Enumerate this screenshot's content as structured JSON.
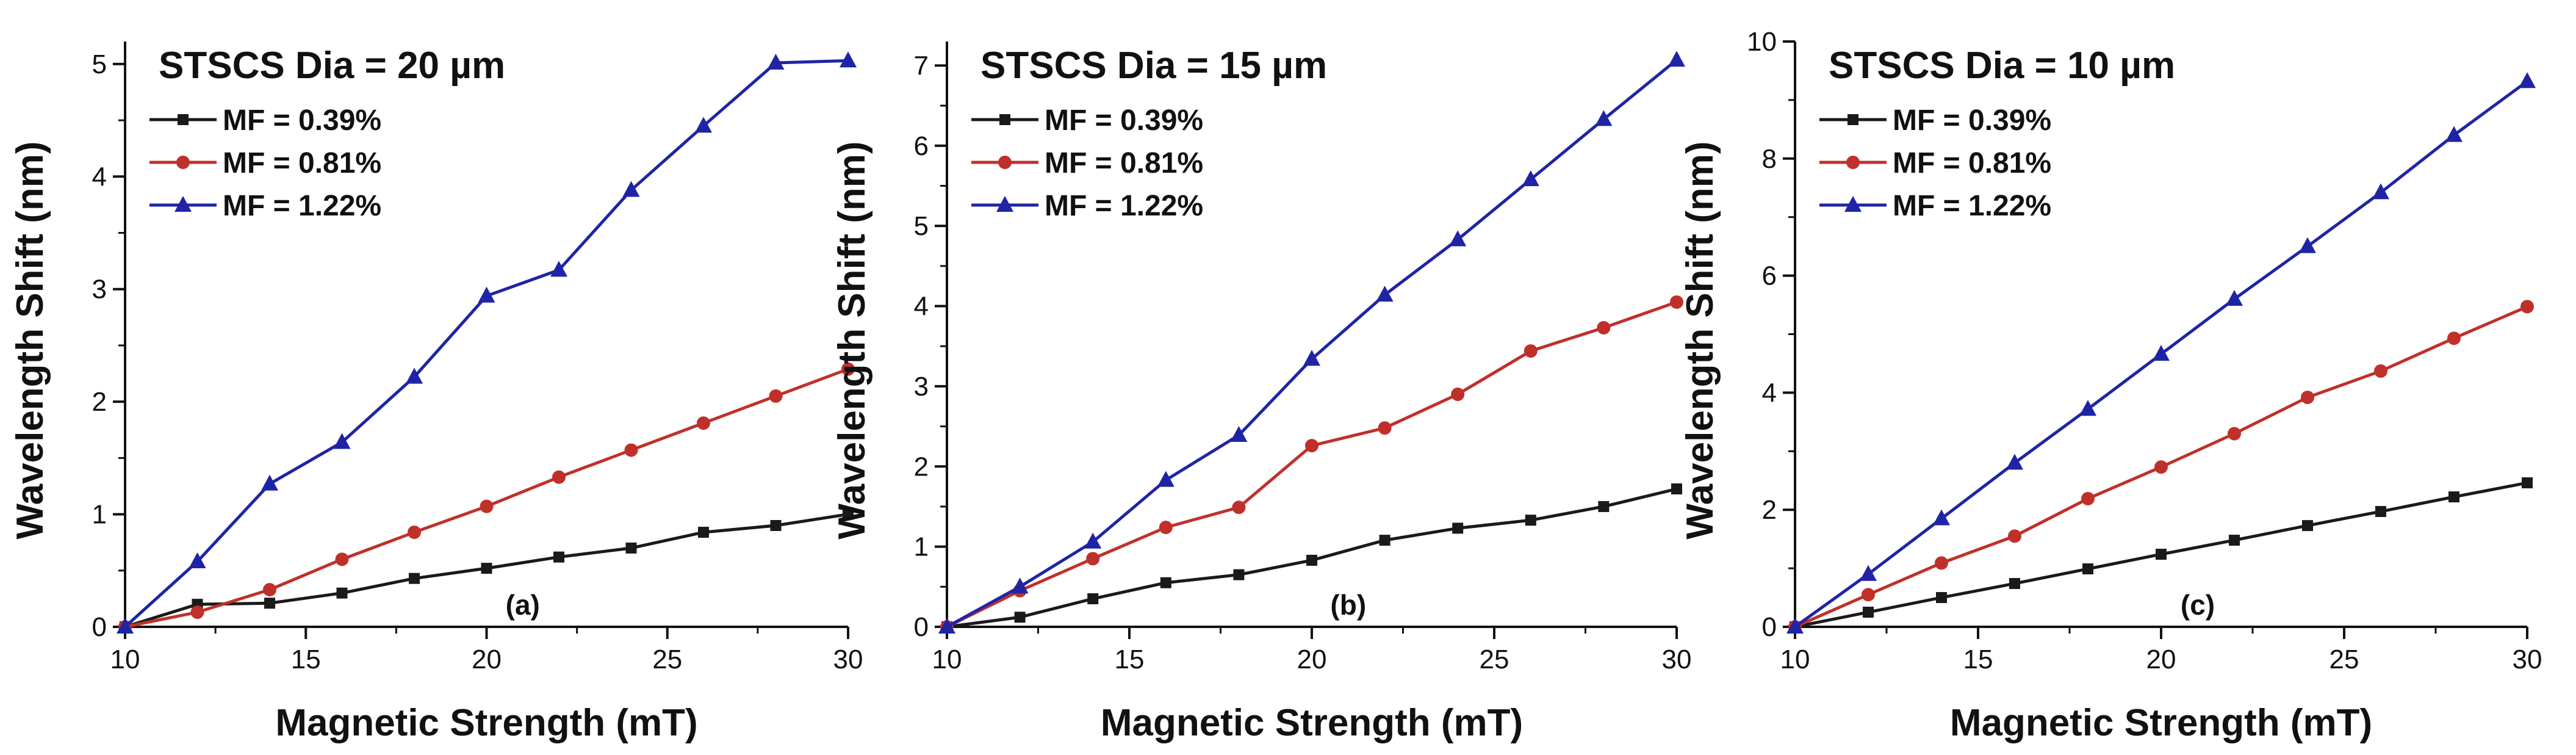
{
  "chart_data": [
    {
      "type": "line",
      "panel_label": "(a)",
      "title": "STSCS Dia = 20 µm",
      "xlabel": "Magnetic Strength (mT)",
      "ylabel": "Wavelength Shift (nm)",
      "xlim": [
        10,
        30
      ],
      "ylim": [
        0,
        5.2
      ],
      "xticks": [
        10,
        15,
        20,
        25,
        30
      ],
      "yticks": [
        0,
        1,
        2,
        3,
        4,
        5
      ],
      "x": [
        10,
        12,
        14,
        16,
        18,
        20,
        22,
        24,
        26,
        28,
        30
      ],
      "grid": false,
      "legend_position": "top-left",
      "series": [
        {
          "name": "MF = 0.39%",
          "color": "#1a1a1a",
          "marker": "square",
          "values": [
            0,
            0.2,
            0.21,
            0.3,
            0.43,
            0.52,
            0.62,
            0.7,
            0.84,
            0.9,
            1.0
          ]
        },
        {
          "name": "MF = 0.81%",
          "color": "#c0302a",
          "marker": "circle",
          "values": [
            0,
            0.13,
            0.33,
            0.6,
            0.84,
            1.07,
            1.33,
            1.57,
            1.81,
            2.05,
            2.29
          ]
        },
        {
          "name": "MF = 1.22%",
          "color": "#1f24a6",
          "marker": "triangle",
          "values": [
            0,
            0.58,
            1.27,
            1.64,
            2.22,
            2.94,
            3.17,
            3.88,
            4.45,
            5.01,
            5.03
          ]
        }
      ]
    },
    {
      "type": "line",
      "panel_label": "(b)",
      "title": "STSCS Dia = 15 µm",
      "xlabel": "Magnetic Strength (mT)",
      "ylabel": "Wavelength Shift (nm)",
      "xlim": [
        10,
        30
      ],
      "ylim": [
        0,
        7.3
      ],
      "xticks": [
        10,
        15,
        20,
        25,
        30
      ],
      "yticks": [
        0,
        1,
        2,
        3,
        4,
        5,
        6,
        7
      ],
      "x": [
        10,
        12,
        14,
        16,
        18,
        20,
        22,
        24,
        26,
        28,
        30
      ],
      "grid": false,
      "legend_position": "top-left",
      "series": [
        {
          "name": "MF = 0.39%",
          "color": "#1a1a1a",
          "marker": "square",
          "values": [
            0,
            0.12,
            0.35,
            0.55,
            0.65,
            0.83,
            1.08,
            1.23,
            1.33,
            1.5,
            1.72
          ]
        },
        {
          "name": "MF = 0.81%",
          "color": "#c0302a",
          "marker": "circle",
          "values": [
            0,
            0.45,
            0.85,
            1.24,
            1.49,
            2.26,
            2.48,
            2.9,
            3.44,
            3.73,
            4.05
          ]
        },
        {
          "name": "MF = 1.22%",
          "color": "#1f24a6",
          "marker": "triangle",
          "values": [
            0,
            0.5,
            1.06,
            1.83,
            2.39,
            3.34,
            4.14,
            4.83,
            5.58,
            6.33,
            7.07
          ]
        }
      ]
    },
    {
      "type": "line",
      "panel_label": "(c)",
      "title": "STSCS Dia = 10 µm",
      "xlabel": "Magnetic Strength (mT)",
      "ylabel": "Wavelength Shift (nm)",
      "xlim": [
        10,
        30
      ],
      "ylim": [
        0,
        10
      ],
      "xticks": [
        10,
        15,
        20,
        25,
        30
      ],
      "yticks": [
        0,
        2,
        4,
        6,
        8,
        10
      ],
      "x": [
        10,
        12,
        14,
        16,
        18,
        20,
        22,
        24,
        26,
        28,
        30
      ],
      "grid": false,
      "legend_position": "top-left",
      "series": [
        {
          "name": "MF = 0.39%",
          "color": "#1a1a1a",
          "marker": "square",
          "values": [
            0,
            0.25,
            0.5,
            0.74,
            0.99,
            1.24,
            1.48,
            1.73,
            1.97,
            2.22,
            2.46
          ]
        },
        {
          "name": "MF = 0.81%",
          "color": "#c0302a",
          "marker": "circle",
          "values": [
            0,
            0.55,
            1.09,
            1.55,
            2.19,
            2.73,
            3.3,
            3.92,
            4.37,
            4.93,
            5.47
          ]
        },
        {
          "name": "MF = 1.22%",
          "color": "#1f24a6",
          "marker": "triangle",
          "values": [
            0,
            0.9,
            1.85,
            2.8,
            3.72,
            4.66,
            5.6,
            6.5,
            7.42,
            8.4,
            9.32
          ]
        }
      ]
    }
  ]
}
